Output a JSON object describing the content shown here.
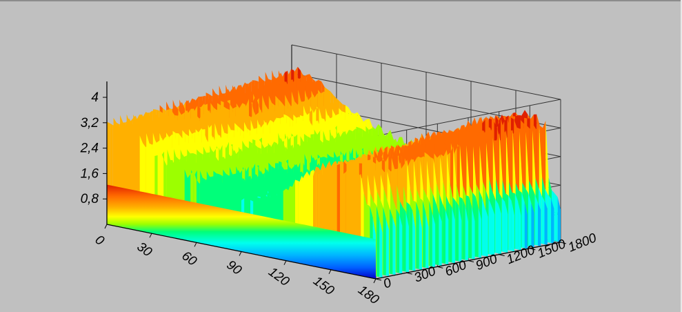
{
  "chart_data": {
    "type": "surface3d",
    "title": "",
    "xlabel": "",
    "ylabel": "",
    "zlabel": "",
    "x_ticks": [
      "0",
      "30",
      "60",
      "90",
      "120",
      "150",
      "180"
    ],
    "y_ticks": [
      "0",
      "300",
      "600",
      "900",
      "1200",
      "1500",
      "1800"
    ],
    "z_ticks": [
      "0,8",
      "1,6",
      "2,4",
      "3,2",
      "4"
    ],
    "xlim": [
      0,
      180
    ],
    "ylim": [
      0,
      1900
    ],
    "zlim": [
      0,
      4.5
    ],
    "grid": true,
    "colormap": [
      "#0000cc",
      "#0060ff",
      "#00b4ff",
      "#00ffee",
      "#00ff7a",
      "#9cff00",
      "#ffff00",
      "#ffb000",
      "#ff6a00",
      "#e02000"
    ],
    "background": "#c0c0c0",
    "profile_along_x": {
      "x": [
        0,
        10,
        20,
        30,
        40,
        50,
        60,
        70,
        80,
        90,
        100,
        110,
        120,
        130,
        140,
        150,
        160,
        170,
        180
      ],
      "z_avg": [
        3.6,
        3.5,
        3.3,
        2.9,
        2.6,
        2.4,
        2.2,
        2.0,
        1.9,
        1.8,
        1.8,
        1.9,
        2.3,
        2.9,
        3.3,
        3.5,
        3.6,
        3.3,
        1.6
      ],
      "z_peak": [
        4.0,
        3.8,
        3.7,
        3.3,
        3.0,
        2.8,
        2.6,
        2.4,
        2.3,
        2.2,
        2.2,
        2.4,
        2.9,
        3.4,
        3.8,
        4.0,
        4.1,
        3.8,
        2.0
      ]
    }
  }
}
